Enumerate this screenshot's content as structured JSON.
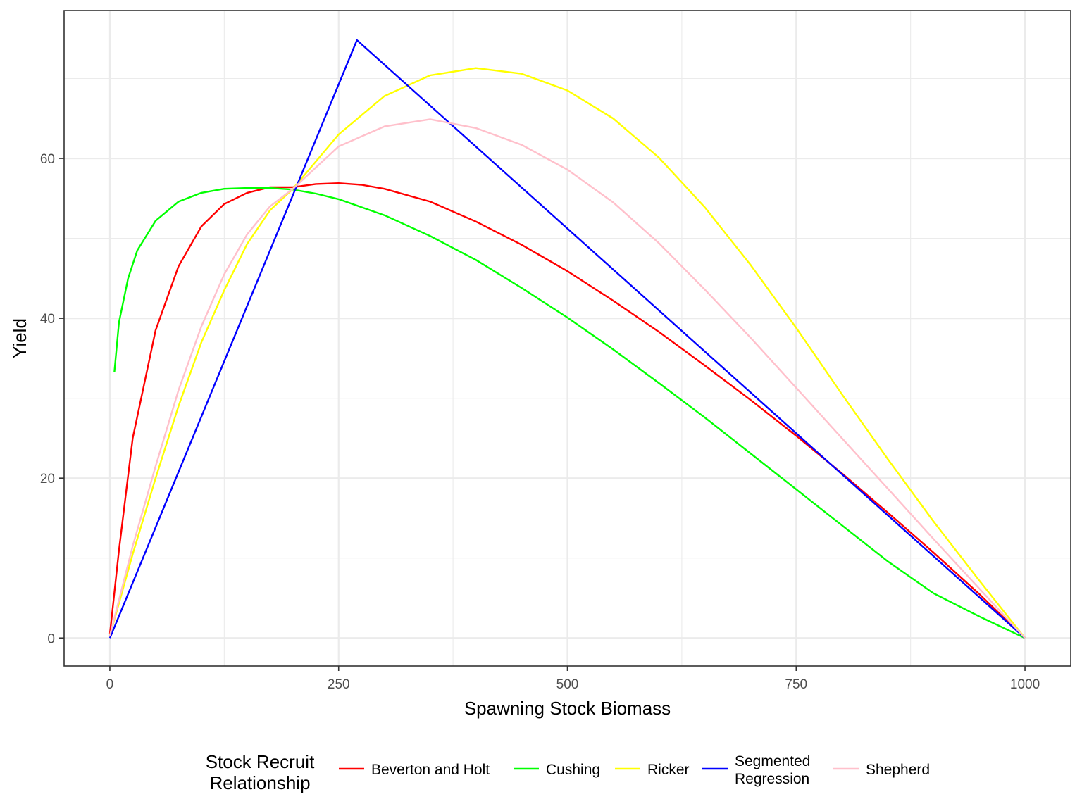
{
  "chart_data": {
    "type": "line",
    "xlabel": "Spawning Stock Biomass",
    "ylabel": "Yield",
    "xlim": [
      -50,
      1050
    ],
    "ylim": [
      -3.5,
      78.5
    ],
    "x_ticks": [
      0,
      250,
      500,
      750,
      1000
    ],
    "x_tick_labels": [
      "0",
      "250",
      "500",
      "750",
      "1000"
    ],
    "y_ticks": [
      0,
      20,
      40,
      60
    ],
    "y_tick_labels": [
      "0",
      "20",
      "40",
      "60"
    ],
    "grid": true,
    "legend": {
      "title_lines": [
        "Stock Recruit",
        "Relationship"
      ],
      "position": "bottom"
    },
    "series": [
      {
        "name": "Beverton and Holt",
        "name_lines": [
          "Beverton and Holt"
        ],
        "color": "#ff0000",
        "x": [
          0,
          10,
          25,
          50,
          75,
          100,
          125,
          150,
          175,
          200,
          225,
          250,
          275,
          300,
          350,
          400,
          450,
          500,
          550,
          600,
          650,
          700,
          750,
          800,
          850,
          900,
          950,
          1000
        ],
        "y": [
          0.5,
          11,
          25,
          38.5,
          46.5,
          51.5,
          54.3,
          55.7,
          56.4,
          56.4,
          56.8,
          56.9,
          56.7,
          56.2,
          54.6,
          52.1,
          49.2,
          45.9,
          42.2,
          38.3,
          34.1,
          29.8,
          25.3,
          20.6,
          15.7,
          10.7,
          5.5,
          0
        ]
      },
      {
        "name": "Cushing",
        "name_lines": [
          "Cushing"
        ],
        "color": "#00ff00",
        "x": [
          5,
          10,
          20,
          30,
          50,
          75,
          100,
          125,
          150,
          175,
          200,
          225,
          250,
          300,
          350,
          400,
          450,
          500,
          550,
          600,
          650,
          700,
          750,
          800,
          850,
          900,
          950,
          1000
        ],
        "y": [
          33.3,
          39.5,
          45,
          48.5,
          52.2,
          54.6,
          55.7,
          56.2,
          56.3,
          56.3,
          56.1,
          55.6,
          54.9,
          52.9,
          50.3,
          47.3,
          43.8,
          40.1,
          36.1,
          31.9,
          27.6,
          23.1,
          18.6,
          14.1,
          9.6,
          5.6,
          2.7,
          0
        ]
      },
      {
        "name": "Ricker",
        "name_lines": [
          "Ricker"
        ],
        "color": "#ffff00",
        "x": [
          0,
          25,
          50,
          75,
          100,
          125,
          150,
          175,
          200,
          250,
          300,
          350,
          400,
          450,
          500,
          550,
          600,
          650,
          700,
          750,
          800,
          850,
          900,
          950,
          1000
        ],
        "y": [
          0.3,
          10.5,
          20,
          29,
          37,
          43.5,
          49.3,
          53.5,
          56.2,
          63,
          67.8,
          70.4,
          71.3,
          70.6,
          68.5,
          65,
          60.1,
          53.9,
          46.7,
          38.8,
          30.5,
          22.4,
          14.6,
          7.2,
          0
        ]
      },
      {
        "name": "Segmented Regression",
        "name_lines": [
          "Segmented",
          "Regression"
        ],
        "color": "#0000ff",
        "x": [
          0,
          270,
          1000
        ],
        "y": [
          0,
          74.8,
          0
        ]
      },
      {
        "name": "Shepherd",
        "name_lines": [
          "Shepherd"
        ],
        "color": "#ffc0cb",
        "x": [
          0,
          25,
          50,
          75,
          100,
          125,
          150,
          175,
          200,
          250,
          300,
          350,
          400,
          450,
          500,
          550,
          600,
          650,
          700,
          750,
          800,
          850,
          900,
          950,
          1000
        ],
        "y": [
          0.3,
          11.5,
          21.5,
          31,
          39,
          45.5,
          50.5,
          54,
          56.2,
          61.5,
          64,
          64.9,
          63.8,
          61.7,
          58.6,
          54.5,
          49.4,
          43.6,
          37.6,
          31.3,
          25,
          18.7,
          12.4,
          6.2,
          0
        ]
      }
    ]
  }
}
